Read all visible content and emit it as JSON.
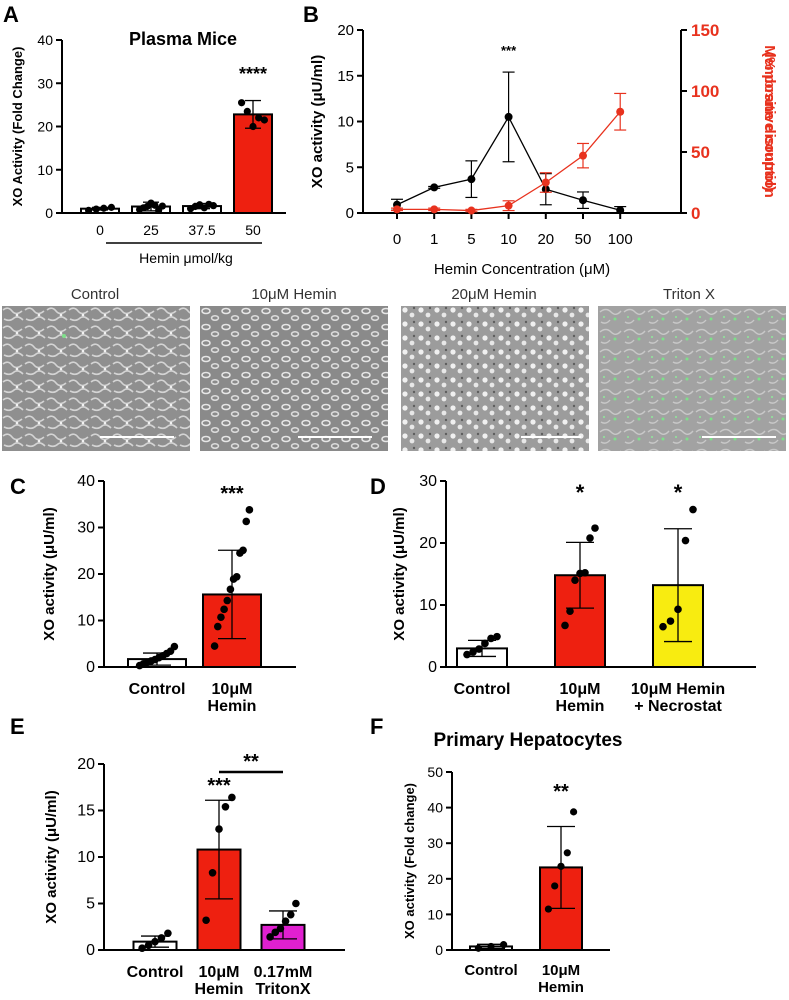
{
  "labels": {
    "panels": [
      "A",
      "B",
      "C",
      "D",
      "E",
      "F"
    ],
    "images": [
      "Control",
      "10μM Hemin",
      "20μM Hemin",
      "Triton X"
    ]
  },
  "colors": {
    "red": "#ee2010",
    "yellow": "#f8ec10",
    "magenta": "#e020d0",
    "black": "#000000",
    "membrane": "#e8321e",
    "micro_bg": "#9a9a9a",
    "fluor": "#7ee08a"
  },
  "chart_data": [
    {
      "id": "A",
      "type": "bar",
      "title": "Plasma Mice",
      "ylabel": "XO Activity (Fold Change)",
      "xlabel": "Hemin μmol/kg",
      "categories": [
        "0",
        "25",
        "37.5",
        "50"
      ],
      "values": [
        1.0,
        1.5,
        1.6,
        22.8
      ],
      "errors": [
        0.3,
        1.0,
        0.6,
        3.2
      ],
      "colors": [
        "#ffffff",
        "#ffffff",
        "#ffffff",
        "#ee2010"
      ],
      "points": [
        [
          0.6,
          0.9,
          1.1,
          1.3
        ],
        [
          0.8,
          1.2,
          1.5,
          2.3,
          1.8,
          0.6,
          1.6
        ],
        [
          1.0,
          1.5,
          1.9,
          1.2,
          2.0,
          1.7
        ],
        [
          25.5,
          23.5,
          20.0,
          22.0,
          21.5
        ]
      ],
      "ylim": [
        0,
        40
      ],
      "yticks": [
        "0",
        "10",
        "20",
        "30",
        "40"
      ],
      "annotations": [
        {
          "text": "****",
          "bar": 3
        }
      ]
    },
    {
      "id": "B",
      "type": "line",
      "xlabel": "Hemin Concentration (μM)",
      "ylabel": "XO activity (μU/ml)",
      "y2label": "Membrane disruption (% positive control)",
      "categories": [
        "0",
        "1",
        "5",
        "10",
        "20",
        "50",
        "100"
      ],
      "ylim": [
        0,
        20
      ],
      "yticks": [
        "0",
        "5",
        "10",
        "15",
        "20"
      ],
      "y2lim": [
        0,
        150
      ],
      "y2ticks": [
        "0",
        "50",
        "100",
        "150"
      ],
      "series": [
        {
          "name": "XO activity",
          "axis": "left",
          "color": "#000000",
          "values": [
            0.9,
            2.8,
            3.7,
            10.5,
            2.6,
            1.4,
            0.3
          ],
          "errors": [
            0.6,
            0.1,
            2.0,
            4.9,
            1.7,
            0.9,
            0.4
          ]
        },
        {
          "name": "Membrane disruption",
          "axis": "right",
          "color": "#e8321e",
          "values": [
            3,
            3,
            2,
            6,
            25,
            47,
            83
          ],
          "errors": [
            1,
            1,
            1,
            4,
            8,
            10,
            15
          ]
        }
      ],
      "annotations": [
        {
          "text": "***",
          "index": 3
        }
      ]
    },
    {
      "id": "C",
      "type": "bar",
      "ylabel": "XO activity (μU/ml)",
      "categories": [
        "Control",
        "10μM Hemin"
      ],
      "values": [
        1.7,
        15.6
      ],
      "errors": [
        1.3,
        9.5
      ],
      "colors": [
        "#ffffff",
        "#ee2010"
      ],
      "points": [
        [
          0.3,
          0.7,
          1.0,
          1.3,
          1.6,
          2.0,
          2.4,
          2.9,
          3.4,
          4.4
        ],
        [
          4.5,
          8.7,
          10.7,
          12.4,
          14.3,
          16.7,
          18.9,
          19.4,
          24.5,
          25.1,
          31.3,
          33.8
        ]
      ],
      "ylim": [
        0,
        40
      ],
      "yticks": [
        "0",
        "10",
        "20",
        "30",
        "40"
      ],
      "annotations": [
        {
          "text": "***",
          "bar": 1
        }
      ]
    },
    {
      "id": "D",
      "type": "bar",
      "ylabel": "XO activity (μU/ml)",
      "categories": [
        "Control",
        "10μM Hemin",
        "10μM Hemin + Necrostat"
      ],
      "values": [
        3.0,
        14.8,
        13.2
      ],
      "errors": [
        1.3,
        5.3,
        9.1
      ],
      "colors": [
        "#ffffff",
        "#ee2010",
        "#f8ec10"
      ],
      "points": [
        [
          2.0,
          2.4,
          2.9,
          3.8,
          4.6,
          4.9
        ],
        [
          6.7,
          9.0,
          14.0,
          15.1,
          15.2,
          20.8,
          22.4
        ],
        [
          6.5,
          7.4,
          9.3,
          20.4,
          25.4
        ]
      ],
      "ylim": [
        0,
        30
      ],
      "yticks": [
        "0",
        "10",
        "20",
        "30"
      ],
      "annotations": [
        {
          "text": "*",
          "bar": 1
        },
        {
          "text": "*",
          "bar": 2
        }
      ]
    },
    {
      "id": "E",
      "type": "bar",
      "ylabel": "XO activity (μU/ml)",
      "categories": [
        "Control",
        "10μM Hemin",
        "0.17mM TritonX"
      ],
      "values": [
        0.9,
        10.8,
        2.7
      ],
      "errors": [
        0.6,
        5.3,
        1.5
      ],
      "colors": [
        "#ffffff",
        "#ee2010",
        "#e020d0"
      ],
      "points": [
        [
          0.2,
          0.5,
          0.9,
          1.3,
          1.8
        ],
        [
          3.2,
          8.3,
          13.0,
          15.4,
          16.4
        ],
        [
          1.4,
          1.9,
          2.3,
          3.1,
          3.8,
          5.0
        ]
      ],
      "ylim": [
        0,
        20
      ],
      "yticks": [
        "0",
        "5",
        "10",
        "15",
        "20"
      ],
      "annotations": [
        {
          "text": "***",
          "bar": 1
        },
        {
          "text": "**",
          "bracket": [
            1,
            2
          ]
        }
      ]
    },
    {
      "id": "F",
      "type": "bar",
      "title": "Primary Hepatocytes",
      "ylabel": "XO activity (Fold change)",
      "categories": [
        "Control",
        "10μM Hemin"
      ],
      "values": [
        1.0,
        23.2
      ],
      "errors": [
        0.6,
        11.5
      ],
      "colors": [
        "#ffffff",
        "#ee2010"
      ],
      "points": [
        [
          0.5,
          1.0,
          1.5
        ],
        [
          11.5,
          18.0,
          23.5,
          27.3,
          38.8
        ]
      ],
      "ylim": [
        0,
        50
      ],
      "yticks": [
        "0",
        "10",
        "20",
        "30",
        "40",
        "50"
      ],
      "annotations": [
        {
          "text": "**",
          "bar": 1
        }
      ]
    }
  ]
}
